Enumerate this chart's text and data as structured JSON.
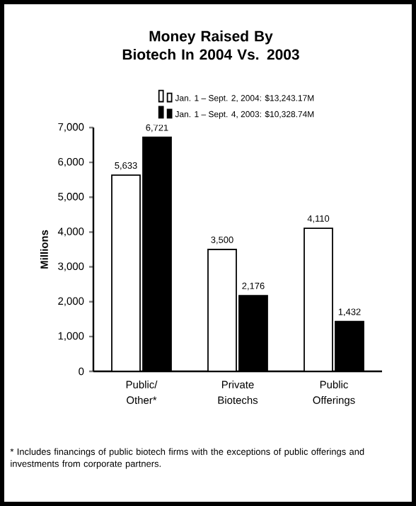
{
  "chart_data": {
    "type": "bar",
    "title": "Money Raised By Biotech In 2004 Vs. 2003",
    "ylabel": "Millions",
    "categories": [
      "Public/ Other*",
      "Private Biotechs",
      "Public Offerings"
    ],
    "series": [
      {
        "name": "Jan. 1 – Sept. 2, 2004: $13,243.17M",
        "color": "#ffffff",
        "values": [
          5633,
          3500,
          4110
        ],
        "value_labels": [
          "5,633",
          "3,500",
          "4,110"
        ]
      },
      {
        "name": "Jan. 1 – Sept. 4, 2003: $10,328.74M",
        "color": "#000000",
        "values": [
          6721,
          2176,
          1432
        ],
        "value_labels": [
          "6,721",
          "2,176",
          "1,432"
        ]
      }
    ],
    "ylim": [
      0,
      7000
    ],
    "yticks": [
      {
        "value": 0,
        "label": "0"
      },
      {
        "value": 1000,
        "label": "1,000"
      },
      {
        "value": 2000,
        "label": "2,000"
      },
      {
        "value": 3000,
        "label": "3,000"
      },
      {
        "value": 4000,
        "label": "4,000"
      },
      {
        "value": 5000,
        "label": "5,000"
      },
      {
        "value": 6000,
        "label": "6,000"
      },
      {
        "value": 7000,
        "label": "7,000"
      }
    ],
    "legend": "top",
    "annotations": [
      "* Includes financings of public biotech firms with the exceptions of public offerings and investments from corporate partners."
    ]
  }
}
